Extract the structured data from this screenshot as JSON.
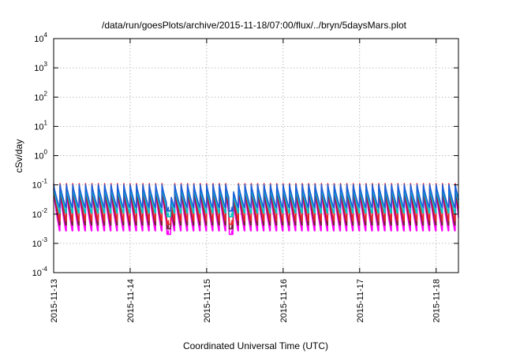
{
  "chart_data": {
    "type": "line",
    "title": "/data/run/goesPlots/archive/2015-11-18/07:00/flux/../bryn/5daysMars.plot",
    "xlabel": "Coordinated Universal Time (UTC)",
    "ylabel": "cSv/day",
    "yscale": "log",
    "ylim": [
      0.0001,
      10000
    ],
    "yticks": [
      {
        "base": "10",
        "exp": "4",
        "value": 10000
      },
      {
        "base": "10",
        "exp": "3",
        "value": 1000
      },
      {
        "base": "10",
        "exp": "2",
        "value": 100
      },
      {
        "base": "10",
        "exp": "1",
        "value": 10
      },
      {
        "base": "10",
        "exp": "0",
        "value": 1
      },
      {
        "base": "10",
        "exp": "-1",
        "value": 0.1
      },
      {
        "base": "10",
        "exp": "-2",
        "value": 0.01
      },
      {
        "base": "10",
        "exp": "-3",
        "value": 0.001
      },
      {
        "base": "10",
        "exp": "-4",
        "value": 0.0001
      }
    ],
    "xlim": [
      "2015-11-13T00:00",
      "2015-11-18T07:00"
    ],
    "xticks": [
      "2015-11-13",
      "2015-11-14",
      "2015-11-15",
      "2015-11-16",
      "2015-11-17",
      "2015-11-18"
    ],
    "grid": true,
    "pattern": {
      "sawtooth_period_hours": 2.0,
      "dropouts": [
        {
          "start": "2015-11-14T11:30",
          "end": "2015-11-14T12:45"
        },
        {
          "start": "2015-11-15T07:00",
          "end": "2015-11-15T08:15"
        }
      ]
    },
    "series": [
      {
        "color": "#ff00ff",
        "peak": 0.06,
        "trough": 0.0027
      },
      {
        "color": "#7a1f3d",
        "peak": 0.075,
        "trough": 0.0042
      },
      {
        "color": "#e8212a",
        "peak": 0.11,
        "trough": 0.006
      },
      {
        "color": "#00c8c8",
        "peak": 0.085,
        "trough": 0.011
      },
      {
        "color": "#1b5fd8",
        "peak": 0.1,
        "trough": 0.017
      }
    ]
  }
}
